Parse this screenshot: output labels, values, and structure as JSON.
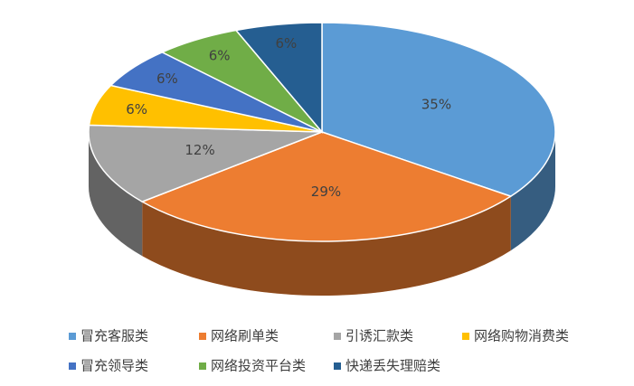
{
  "chart_data": {
    "type": "pie",
    "categories": [
      "冒充客服类",
      "网络刷单类",
      "引诱汇款类",
      "网络购物消费类",
      "冒充领导类",
      "网络投资平台类",
      "快递丢失理赔类"
    ],
    "values": [
      35,
      29,
      12,
      6,
      6,
      6,
      6
    ],
    "value_labels": [
      "35%",
      "29%",
      "12%",
      "6%",
      "6%",
      "6%",
      "6%"
    ],
    "colors": [
      "#5b9bd5",
      "#ed7d31",
      "#a5a5a5",
      "#ffc000",
      "#4472c4",
      "#70ad47",
      "#255e91"
    ],
    "legend": "bottom"
  }
}
